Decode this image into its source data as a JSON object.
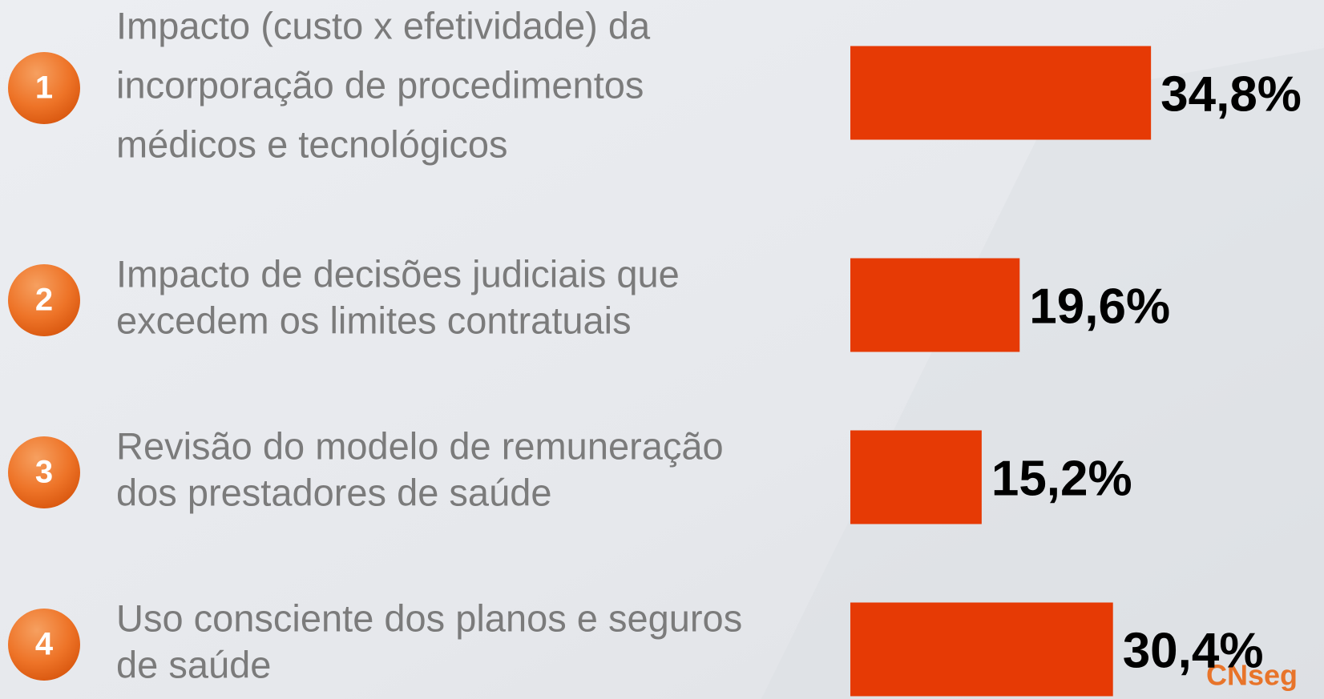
{
  "chart_data": {
    "type": "hbar",
    "ranks": [
      "1",
      "2",
      "3",
      "4"
    ],
    "categories": [
      [
        "Impacto (custo x efetividade) da",
        "incorporação de procedimentos",
        "médicos e tecnológicos"
      ],
      [
        "Impacto de decisões judiciais que",
        "excedem os limites contratuais"
      ],
      [
        "Revisão do modelo de remuneração",
        "dos prestadores de saúde"
      ],
      [
        "Uso consciente dos planos e seguros",
        "de saúde"
      ]
    ],
    "values": [
      34.8,
      19.6,
      15.2,
      30.4
    ],
    "value_labels": [
      "34,8%",
      "19,6%",
      "15,2%",
      "30,4%"
    ],
    "color": "#e63a05",
    "logo": "CNseg"
  }
}
